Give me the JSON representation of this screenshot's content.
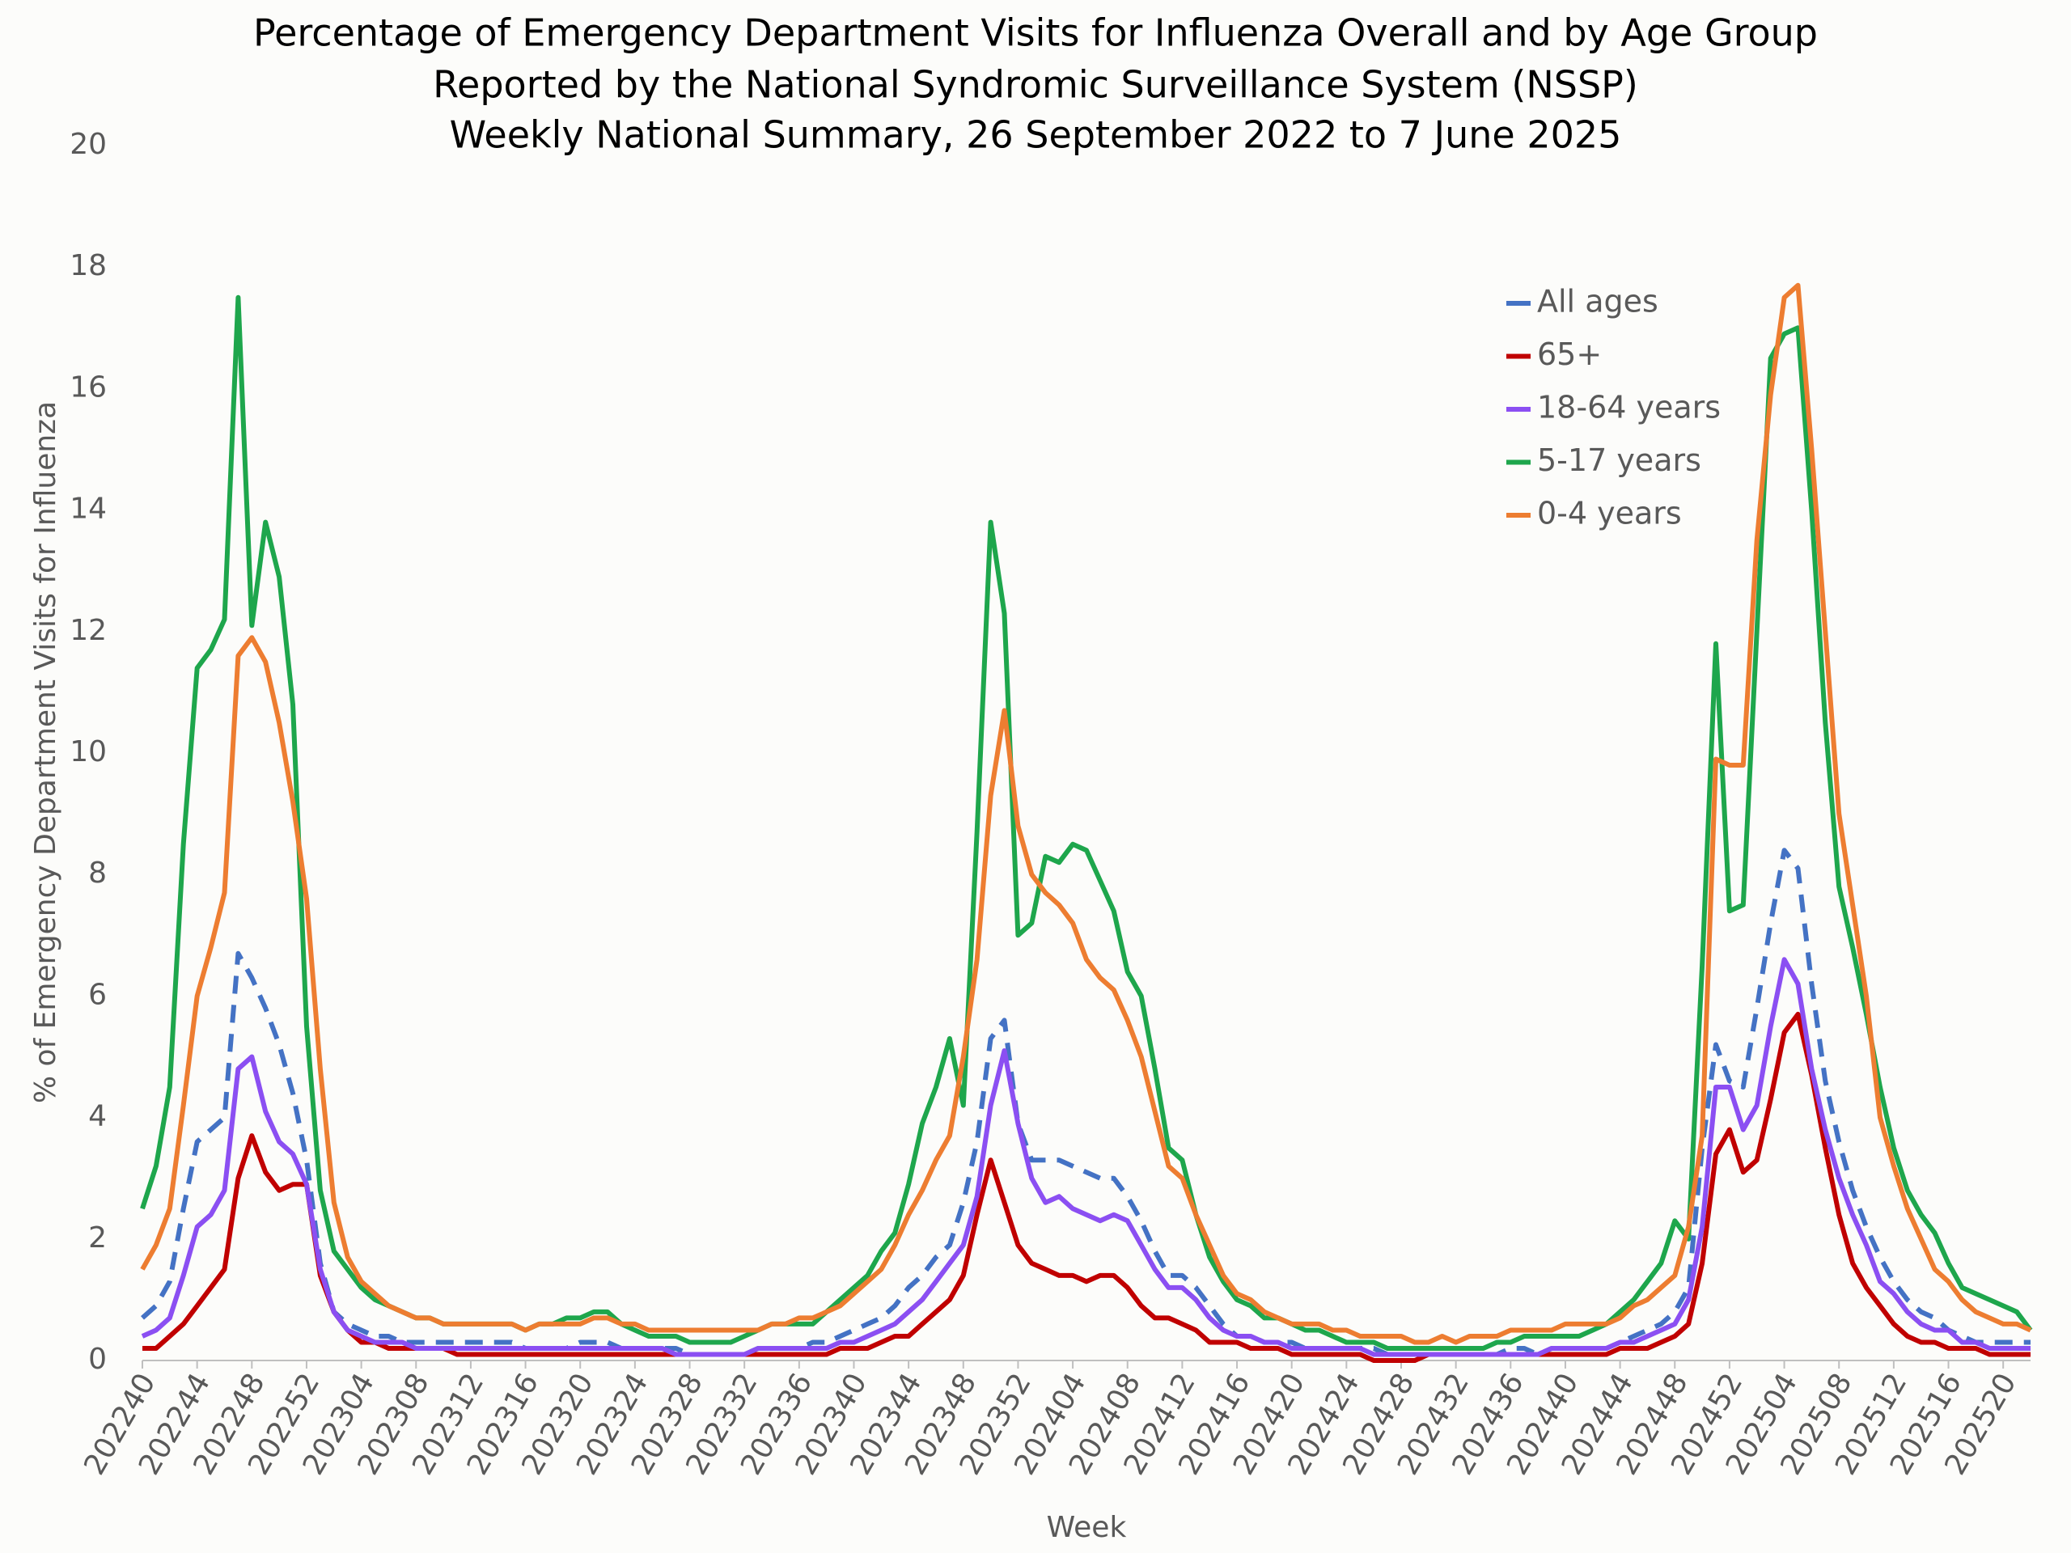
{
  "chart_data": {
    "type": "line",
    "title": [
      "Percentage of Emergency Department Visits for Influenza Overall and by Age Group",
      "Reported by the National Syndromic Surveillance System (NSSP)",
      "Weekly National Summary, 26 September 2022 to 7 June 2025"
    ],
    "x_label": "Week",
    "y_label": "% of Emergency Department Visits for Influenza",
    "ylim": [
      0,
      20
    ],
    "yticks": [
      0,
      2,
      4,
      6,
      8,
      10,
      12,
      14,
      16,
      18,
      20
    ],
    "grid": false,
    "legend": "upper right",
    "categories": [
      "202240",
      null,
      null,
      null,
      "202244",
      null,
      null,
      null,
      "202248",
      null,
      null,
      null,
      "202252",
      null,
      null,
      null,
      "202304",
      null,
      null,
      null,
      "202308",
      null,
      null,
      null,
      "202312",
      null,
      null,
      null,
      "202316",
      null,
      null,
      null,
      "202320",
      null,
      null,
      null,
      "202324",
      null,
      null,
      null,
      "202328",
      null,
      null,
      null,
      "202332",
      null,
      null,
      null,
      "202336",
      null,
      null,
      null,
      "202340",
      null,
      null,
      null,
      "202344",
      null,
      null,
      null,
      "202348",
      null,
      null,
      null,
      "202352",
      null,
      null,
      null,
      "202404",
      null,
      null,
      null,
      "202408",
      null,
      null,
      null,
      "202412",
      null,
      null,
      null,
      "202416",
      null,
      null,
      null,
      "202420",
      null,
      null,
      null,
      "202424",
      null,
      null,
      null,
      "202428",
      null,
      null,
      null,
      "202432",
      null,
      null,
      null,
      "202436",
      null,
      null,
      null,
      "202440",
      null,
      null,
      null,
      "202444",
      null,
      null,
      null,
      "202448",
      null,
      null,
      null,
      "202452",
      null,
      null,
      null,
      "202504",
      null,
      null,
      null,
      "202508",
      null,
      null,
      null,
      "202512",
      null,
      null,
      null,
      "202516",
      null,
      null,
      null,
      "202520",
      null,
      null
    ],
    "series": [
      {
        "name": "All ages",
        "color": "#4472c4",
        "dashed": true,
        "values": [
          0.7,
          0.9,
          1.3,
          2.5,
          3.6,
          3.8,
          4.0,
          6.7,
          6.3,
          5.8,
          5.2,
          4.4,
          3.3,
          1.6,
          0.8,
          0.6,
          0.5,
          0.4,
          0.4,
          0.3,
          0.3,
          0.3,
          0.3,
          0.3,
          0.3,
          0.3,
          0.3,
          0.3,
          0.2,
          0.2,
          0.2,
          0.2,
          0.3,
          0.3,
          0.3,
          0.2,
          0.2,
          0.2,
          0.2,
          0.2,
          0.1,
          0.1,
          0.1,
          0.1,
          0.1,
          0.2,
          0.2,
          0.2,
          0.2,
          0.3,
          0.3,
          0.4,
          0.5,
          0.6,
          0.7,
          0.9,
          1.2,
          1.4,
          1.7,
          1.9,
          2.6,
          3.6,
          5.3,
          5.6,
          3.9,
          3.3,
          3.3,
          3.3,
          3.2,
          3.1,
          3.0,
          3.0,
          2.7,
          2.3,
          1.8,
          1.4,
          1.4,
          1.2,
          0.9,
          0.6,
          0.4,
          0.4,
          0.3,
          0.3,
          0.3,
          0.2,
          0.2,
          0.2,
          0.2,
          0.2,
          0.2,
          0.1,
          0.1,
          0.1,
          0.1,
          0.1,
          0.1,
          0.1,
          0.1,
          0.1,
          0.2,
          0.2,
          0.1,
          0.2,
          0.2,
          0.2,
          0.2,
          0.2,
          0.3,
          0.4,
          0.5,
          0.6,
          0.8,
          1.2,
          3.5,
          5.2,
          4.6,
          4.5,
          5.8,
          7.2,
          8.4,
          8.1,
          6.2,
          4.6,
          3.6,
          2.8,
          2.2,
          1.7,
          1.3,
          1.0,
          0.8,
          0.7,
          0.5,
          0.4,
          0.3,
          0.3,
          0.3,
          0.3,
          0.3
        ]
      },
      {
        "name": "65+",
        "color": "#c00000",
        "dashed": false,
        "values": [
          0.2,
          0.2,
          0.4,
          0.6,
          0.9,
          1.2,
          1.5,
          3.0,
          3.7,
          3.1,
          2.8,
          2.9,
          2.9,
          1.4,
          0.8,
          0.5,
          0.3,
          0.3,
          0.2,
          0.2,
          0.2,
          0.2,
          0.2,
          0.1,
          0.1,
          0.1,
          0.1,
          0.1,
          0.1,
          0.1,
          0.1,
          0.1,
          0.1,
          0.1,
          0.1,
          0.1,
          0.1,
          0.1,
          0.1,
          0.1,
          0.1,
          0.1,
          0.1,
          0.1,
          0.1,
          0.1,
          0.1,
          0.1,
          0.1,
          0.1,
          0.1,
          0.2,
          0.2,
          0.2,
          0.3,
          0.4,
          0.4,
          0.6,
          0.8,
          1.0,
          1.4,
          2.4,
          3.3,
          2.6,
          1.9,
          1.6,
          1.5,
          1.4,
          1.4,
          1.3,
          1.4,
          1.4,
          1.2,
          0.9,
          0.7,
          0.7,
          0.6,
          0.5,
          0.3,
          0.3,
          0.3,
          0.2,
          0.2,
          0.2,
          0.1,
          0.1,
          0.1,
          0.1,
          0.1,
          0.1,
          0.0,
          0.0,
          0.0,
          0.0,
          0.1,
          0.1,
          0.1,
          0.1,
          0.1,
          0.1,
          0.1,
          0.1,
          0.1,
          0.1,
          0.1,
          0.1,
          0.1,
          0.1,
          0.2,
          0.2,
          0.2,
          0.3,
          0.4,
          0.6,
          1.6,
          3.4,
          3.8,
          3.1,
          3.3,
          4.3,
          5.4,
          5.7,
          4.7,
          3.5,
          2.4,
          1.6,
          1.2,
          0.9,
          0.6,
          0.4,
          0.3,
          0.3,
          0.2,
          0.2,
          0.2,
          0.1,
          0.1,
          0.1,
          0.1
        ]
      },
      {
        "name": "18-64 years",
        "color": "#8b4ff2",
        "dashed": false,
        "values": [
          0.4,
          0.5,
          0.7,
          1.4,
          2.2,
          2.4,
          2.8,
          4.8,
          5.0,
          4.1,
          3.6,
          3.4,
          2.9,
          1.5,
          0.8,
          0.5,
          0.4,
          0.3,
          0.3,
          0.3,
          0.2,
          0.2,
          0.2,
          0.2,
          0.2,
          0.2,
          0.2,
          0.2,
          0.2,
          0.2,
          0.2,
          0.2,
          0.2,
          0.2,
          0.2,
          0.2,
          0.2,
          0.2,
          0.2,
          0.1,
          0.1,
          0.1,
          0.1,
          0.1,
          0.1,
          0.2,
          0.2,
          0.2,
          0.2,
          0.2,
          0.2,
          0.3,
          0.3,
          0.4,
          0.5,
          0.6,
          0.8,
          1.0,
          1.3,
          1.6,
          1.9,
          2.7,
          4.2,
          5.1,
          3.9,
          3.0,
          2.6,
          2.7,
          2.5,
          2.4,
          2.3,
          2.4,
          2.3,
          1.9,
          1.5,
          1.2,
          1.2,
          1.0,
          0.7,
          0.5,
          0.4,
          0.4,
          0.3,
          0.3,
          0.2,
          0.2,
          0.2,
          0.2,
          0.2,
          0.2,
          0.1,
          0.1,
          0.1,
          0.1,
          0.1,
          0.1,
          0.1,
          0.1,
          0.1,
          0.1,
          0.1,
          0.1,
          0.1,
          0.2,
          0.2,
          0.2,
          0.2,
          0.2,
          0.3,
          0.3,
          0.4,
          0.5,
          0.6,
          1.0,
          2.2,
          4.5,
          4.5,
          3.8,
          4.2,
          5.5,
          6.6,
          6.2,
          4.8,
          3.8,
          3.0,
          2.4,
          1.9,
          1.3,
          1.1,
          0.8,
          0.6,
          0.5,
          0.5,
          0.3,
          0.3,
          0.2,
          0.2,
          0.2,
          0.2
        ]
      },
      {
        "name": "5-17 years",
        "color": "#1ea64c",
        "dashed": false,
        "values": [
          2.5,
          3.2,
          4.5,
          8.5,
          11.4,
          11.7,
          12.2,
          17.5,
          12.1,
          13.8,
          12.9,
          10.8,
          5.5,
          2.8,
          1.8,
          1.5,
          1.2,
          1.0,
          0.9,
          0.8,
          0.7,
          0.7,
          0.6,
          0.6,
          0.6,
          0.6,
          0.6,
          0.6,
          0.5,
          0.6,
          0.6,
          0.7,
          0.7,
          0.8,
          0.8,
          0.6,
          0.5,
          0.4,
          0.4,
          0.4,
          0.3,
          0.3,
          0.3,
          0.3,
          0.4,
          0.5,
          0.6,
          0.6,
          0.6,
          0.6,
          0.8,
          1.0,
          1.2,
          1.4,
          1.8,
          2.1,
          2.9,
          3.9,
          4.5,
          5.3,
          4.2,
          8.7,
          13.8,
          12.3,
          7.0,
          7.2,
          8.3,
          8.2,
          8.5,
          8.4,
          7.9,
          7.4,
          6.4,
          6.0,
          4.8,
          3.5,
          3.3,
          2.4,
          1.7,
          1.3,
          1.0,
          0.9,
          0.7,
          0.7,
          0.6,
          0.5,
          0.5,
          0.4,
          0.3,
          0.3,
          0.3,
          0.2,
          0.2,
          0.2,
          0.2,
          0.2,
          0.2,
          0.2,
          0.2,
          0.3,
          0.3,
          0.4,
          0.4,
          0.4,
          0.4,
          0.4,
          0.5,
          0.6,
          0.8,
          1.0,
          1.3,
          1.6,
          2.3,
          2.0,
          6.5,
          11.8,
          7.4,
          7.5,
          12.0,
          16.5,
          16.9,
          17.0,
          14.0,
          10.5,
          7.8,
          6.8,
          5.7,
          4.5,
          3.5,
          2.8,
          2.4,
          2.1,
          1.6,
          1.2,
          1.1,
          1.0,
          0.9,
          0.8,
          0.5
        ]
      },
      {
        "name": "0-4 years",
        "color": "#ed7d31",
        "dashed": false,
        "values": [
          1.5,
          1.9,
          2.5,
          4.2,
          6.0,
          6.8,
          7.7,
          11.6,
          11.9,
          11.5,
          10.5,
          9.2,
          7.6,
          4.8,
          2.6,
          1.7,
          1.3,
          1.1,
          0.9,
          0.8,
          0.7,
          0.7,
          0.6,
          0.6,
          0.6,
          0.6,
          0.6,
          0.6,
          0.5,
          0.6,
          0.6,
          0.6,
          0.6,
          0.7,
          0.7,
          0.6,
          0.6,
          0.5,
          0.5,
          0.5,
          0.5,
          0.5,
          0.5,
          0.5,
          0.5,
          0.5,
          0.6,
          0.6,
          0.7,
          0.7,
          0.8,
          0.9,
          1.1,
          1.3,
          1.5,
          1.9,
          2.4,
          2.8,
          3.3,
          3.7,
          5.0,
          6.6,
          9.3,
          10.7,
          8.8,
          8.0,
          7.7,
          7.5,
          7.2,
          6.6,
          6.3,
          6.1,
          5.6,
          5.0,
          4.1,
          3.2,
          3.0,
          2.4,
          1.9,
          1.4,
          1.1,
          1.0,
          0.8,
          0.7,
          0.6,
          0.6,
          0.6,
          0.5,
          0.5,
          0.4,
          0.4,
          0.4,
          0.4,
          0.3,
          0.3,
          0.4,
          0.3,
          0.4,
          0.4,
          0.4,
          0.5,
          0.5,
          0.5,
          0.5,
          0.6,
          0.6,
          0.6,
          0.6,
          0.7,
          0.9,
          1.0,
          1.2,
          1.4,
          2.2,
          3.7,
          9.9,
          9.8,
          9.8,
          13.5,
          15.9,
          17.5,
          17.7,
          15.0,
          12.0,
          9.0,
          7.5,
          6.0,
          4.0,
          3.2,
          2.5,
          2.0,
          1.5,
          1.3,
          1.0,
          0.8,
          0.7,
          0.6,
          0.6,
          0.5
        ]
      }
    ]
  }
}
